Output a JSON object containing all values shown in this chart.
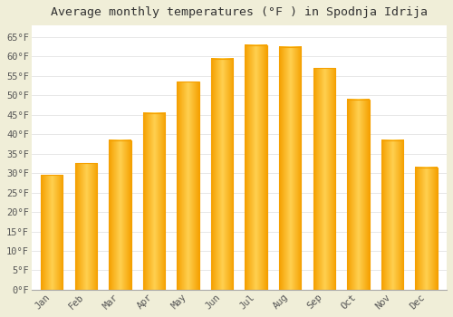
{
  "title": "Average monthly temperatures (°F ) in Spodnja Idrija",
  "months": [
    "Jan",
    "Feb",
    "Mar",
    "Apr",
    "May",
    "Jun",
    "Jul",
    "Aug",
    "Sep",
    "Oct",
    "Nov",
    "Dec"
  ],
  "values": [
    29.5,
    32.5,
    38.5,
    45.5,
    53.5,
    59.5,
    63.0,
    62.5,
    57.0,
    49.0,
    38.5,
    31.5
  ],
  "bar_color_center": "#FFD060",
  "bar_color_edge": "#F5A000",
  "background_color": "#F0EED8",
  "plot_bg_color": "#FFFFFF",
  "ylim": [
    0,
    68
  ],
  "yticks": [
    0,
    5,
    10,
    15,
    20,
    25,
    30,
    35,
    40,
    45,
    50,
    55,
    60,
    65
  ],
  "ytick_labels": [
    "0°F",
    "5°F",
    "10°F",
    "15°F",
    "20°F",
    "25°F",
    "30°F",
    "35°F",
    "40°F",
    "45°F",
    "50°F",
    "55°F",
    "60°F",
    "65°F"
  ],
  "grid_color": "#DDDDDD",
  "title_fontsize": 9.5,
  "tick_fontsize": 7.5,
  "font_family": "monospace"
}
